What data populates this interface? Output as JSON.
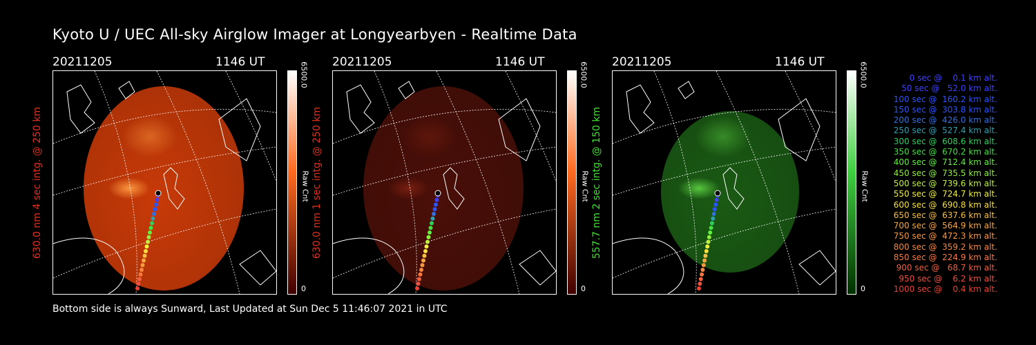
{
  "title": "Kyoto U / UEC All-sky Airglow Imager at Longyearbyen - Realtime Data",
  "footer": "Bottom side is always Sunward, Last Updated at Sun Dec  5 11:46:07 2021 in UTC",
  "panels": [
    {
      "date": "20211205",
      "time": "1146 UT",
      "ylabel": "630.0 nm 4 sec intg. @ 250 km",
      "ylabel_color": "#e03020",
      "scale_max": "6500.0",
      "scale_unit": "Raw Cnt",
      "scale_min": "0",
      "image_color": "#c83a08",
      "image_highlight": "#ff9a40",
      "cbar_top": "#ffffff",
      "cbar_mid": "#ff6a20",
      "cbar_bottom": "#400000"
    },
    {
      "date": "20211205",
      "time": "1146 UT",
      "ylabel": "630.0 nm 1 sec intg. @ 250 km",
      "ylabel_color": "#e03020",
      "scale_max": "6500.0",
      "scale_unit": "Raw Cnt",
      "scale_min": "0",
      "image_color": "#4a0f08",
      "image_highlight": "#7a2010",
      "cbar_top": "#ffffff",
      "cbar_mid": "#ff6a20",
      "cbar_bottom": "#400000"
    },
    {
      "date": "20211205",
      "time": "1146 UT",
      "ylabel": "557.7 nm 2 sec intg. @ 150 km",
      "ylabel_color": "#40e030",
      "scale_max": "6500.0",
      "scale_unit": "Raw Cnt",
      "scale_min": "0",
      "image_color": "#1a5a14",
      "image_highlight": "#5acb40",
      "cbar_top": "#ffffff",
      "cbar_mid": "#40d040",
      "cbar_bottom": "#003000"
    }
  ],
  "legend": [
    {
      "text": "   0 sec @    0.1 km alt.",
      "color": "#4040ff"
    },
    {
      "text": "  50 sec @   52.0 km alt.",
      "color": "#4040ff"
    },
    {
      "text": " 100 sec @  160.2 km alt.",
      "color": "#2a55ff"
    },
    {
      "text": " 150 sec @  303.8 km alt.",
      "color": "#2a55ff"
    },
    {
      "text": " 200 sec @  426.0 km alt.",
      "color": "#3070e0"
    },
    {
      "text": " 250 sec @  527.4 km alt.",
      "color": "#30a0b0"
    },
    {
      "text": " 300 sec @  608.6 km alt.",
      "color": "#30d060"
    },
    {
      "text": " 350 sec @  670.2 km alt.",
      "color": "#40e040"
    },
    {
      "text": " 400 sec @  712.4 km alt.",
      "color": "#60f040"
    },
    {
      "text": " 450 sec @  735.5 km alt.",
      "color": "#90f040"
    },
    {
      "text": " 500 sec @  739.6 km alt.",
      "color": "#c0f040"
    },
    {
      "text": " 550 sec @  724.7 km alt.",
      "color": "#f0f040"
    },
    {
      "text": " 600 sec @  690.8 km alt.",
      "color": "#f8e040"
    },
    {
      "text": " 650 sec @  637.6 km alt.",
      "color": "#f8c040"
    },
    {
      "text": " 700 sec @  564.9 km alt.",
      "color": "#f8a840"
    },
    {
      "text": " 750 sec @  472.3 km alt.",
      "color": "#f89840"
    },
    {
      "text": " 800 sec @  359.2 km alt.",
      "color": "#f88840"
    },
    {
      "text": " 850 sec @  224.9 km alt.",
      "color": "#f87840"
    },
    {
      "text": " 900 sec @   68.7 km alt.",
      "color": "#f06040"
    },
    {
      "text": " 950 sec @    6.2 km alt.",
      "color": "#f05040"
    },
    {
      "text": "1000 sec @    0.4 km alt.",
      "color": "#f04030"
    }
  ]
}
